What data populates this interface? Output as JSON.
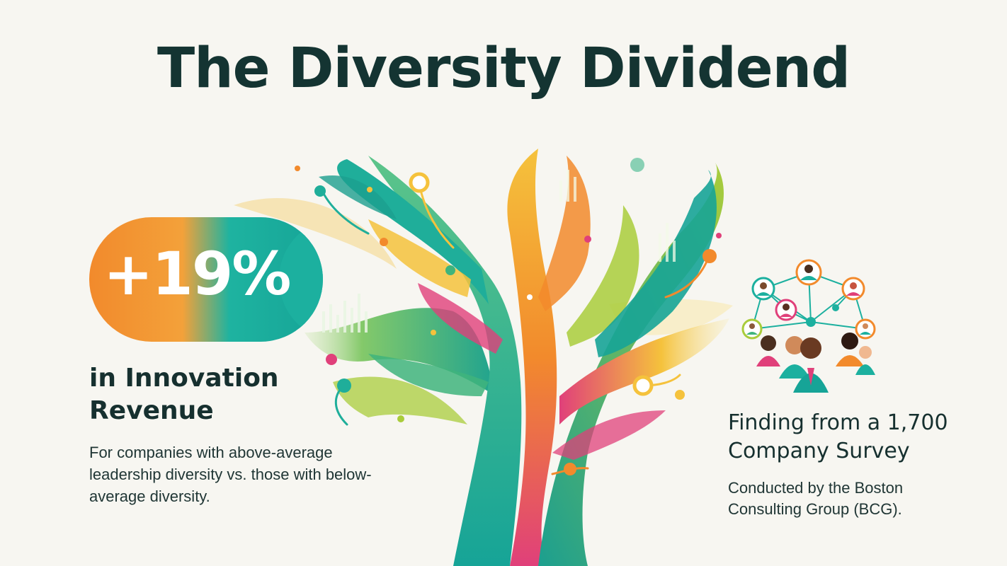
{
  "title": "The Diversity Dividend",
  "stat": {
    "value": "+19%",
    "label_line1": "in Innovation",
    "label_line2": "Revenue",
    "description": "For companies with above-average leadership diversity vs. those with below-average diversity."
  },
  "finding": {
    "heading": "Finding from a 1,700 Company Survey",
    "description": "Conducted by the Boston Consulting Group (BCG)."
  },
  "colors": {
    "background": "#f7f6f1",
    "title": "#143432",
    "orange": "#f28a2c",
    "teal": "#1cb09f",
    "green": "#3fb47c",
    "lime": "#a9cc3b",
    "magenta": "#e0407a",
    "yellow": "#f5c23c"
  },
  "icons": [
    "diversity-tree-illustration",
    "people-network-icon"
  ]
}
